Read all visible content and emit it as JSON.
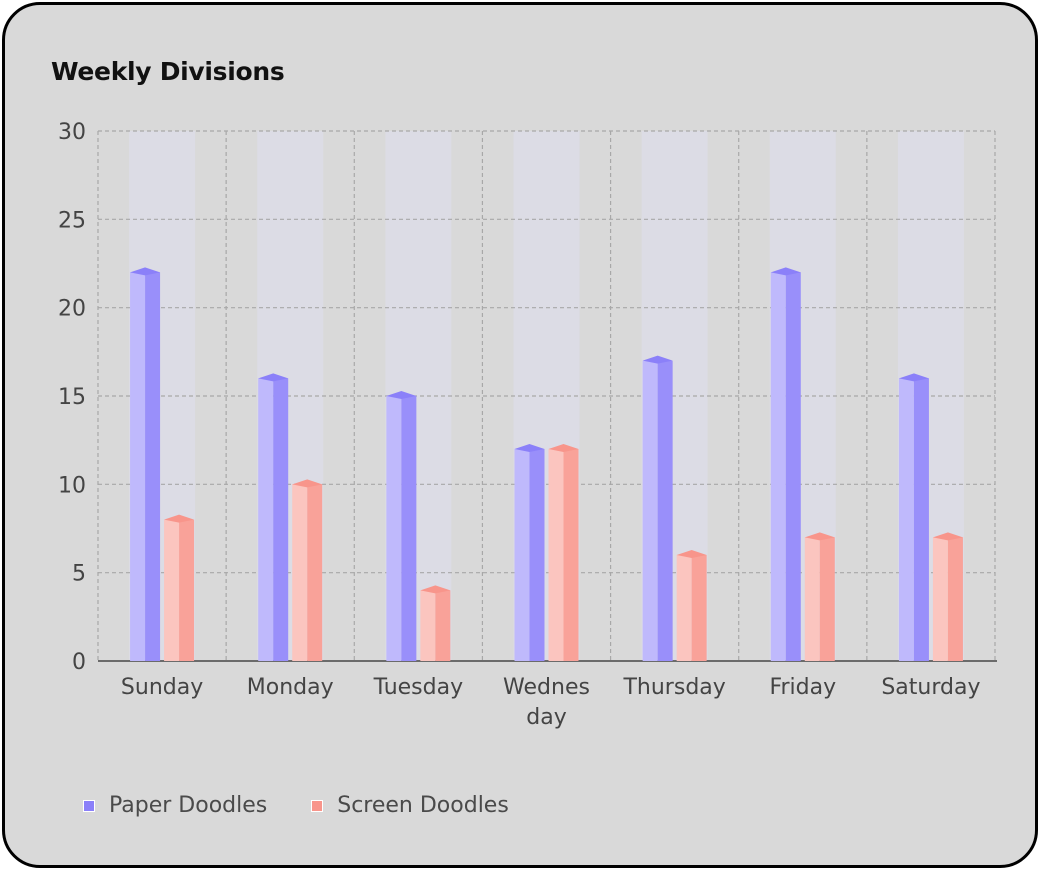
{
  "chart_data": {
    "type": "bar",
    "title": "Weekly Divisions",
    "categories": [
      "Sunday",
      "Monday",
      "Tuesday",
      "Wednesday",
      "Thursday",
      "Friday",
      "Saturday"
    ],
    "category_tick_lines": [
      [
        "Sunday"
      ],
      [
        "Monday"
      ],
      [
        "Tuesday"
      ],
      [
        "Wednes",
        "day"
      ],
      [
        "Thursday"
      ],
      [
        "Friday"
      ],
      [
        "Saturday"
      ]
    ],
    "series": [
      {
        "name": "Paper Doodles",
        "values": [
          22,
          16,
          15,
          12,
          17,
          22,
          16
        ],
        "color": "#8b80f9"
      },
      {
        "name": "Screen Doodles",
        "values": [
          8,
          10,
          4,
          12,
          6,
          7,
          7
        ],
        "color": "#f8958b"
      }
    ],
    "ylim": [
      0,
      30
    ],
    "yticks": [
      0,
      5,
      10,
      15,
      20,
      25,
      30
    ],
    "grid": true,
    "legend_position": "bottom-left",
    "style": "3d-bars"
  }
}
